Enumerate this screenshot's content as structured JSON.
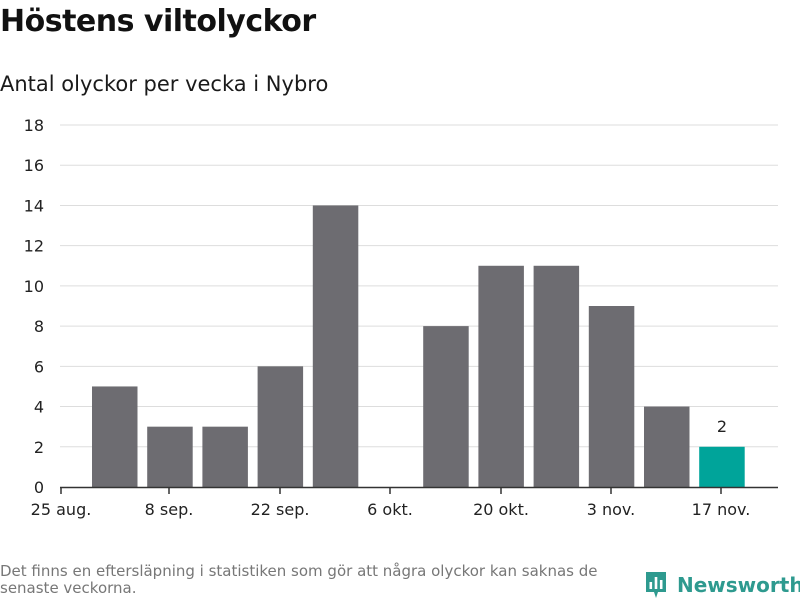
{
  "title": "Höstens viltolyckor",
  "subtitle": "Antal olyckor per vecka i Nybro",
  "footnote": "Det finns en eftersläpning i statistiken som gör att några olyckor kan saknas de senaste veckorna.",
  "brand": {
    "name": "Newsworthy",
    "logo_icon": "newsworthy-logo-icon",
    "color": "#2e9a8f"
  },
  "colors": {
    "bar": "#6d6c71",
    "highlight_bar": "#00a49a",
    "grid": "#dddddd",
    "axis": "#333333"
  },
  "chart_data": {
    "type": "bar",
    "xlabel": "",
    "ylabel": "",
    "ylim": [
      0,
      18
    ],
    "yticks": [
      0,
      2,
      4,
      6,
      8,
      10,
      12,
      14,
      16,
      18
    ],
    "grid": "horizontal",
    "legend": "none",
    "xtick_labels": [
      "25 aug.",
      "8 sep.",
      "22 sep.",
      "6 okt.",
      "20 okt.",
      "3 nov.",
      "17 nov."
    ],
    "categories": [
      "2024-09-01",
      "2024-09-08",
      "2024-09-15",
      "2024-09-22",
      "2024-09-29",
      "2024-10-06",
      "2024-10-13",
      "2024-10-20",
      "2024-10-27",
      "2024-11-03",
      "2024-11-10",
      "2024-11-17"
    ],
    "values": [
      5,
      3,
      3,
      6,
      14,
      0,
      8,
      11,
      11,
      9,
      4,
      2
    ],
    "highlight_last": true,
    "data_labels": {
      "11": "2"
    }
  }
}
